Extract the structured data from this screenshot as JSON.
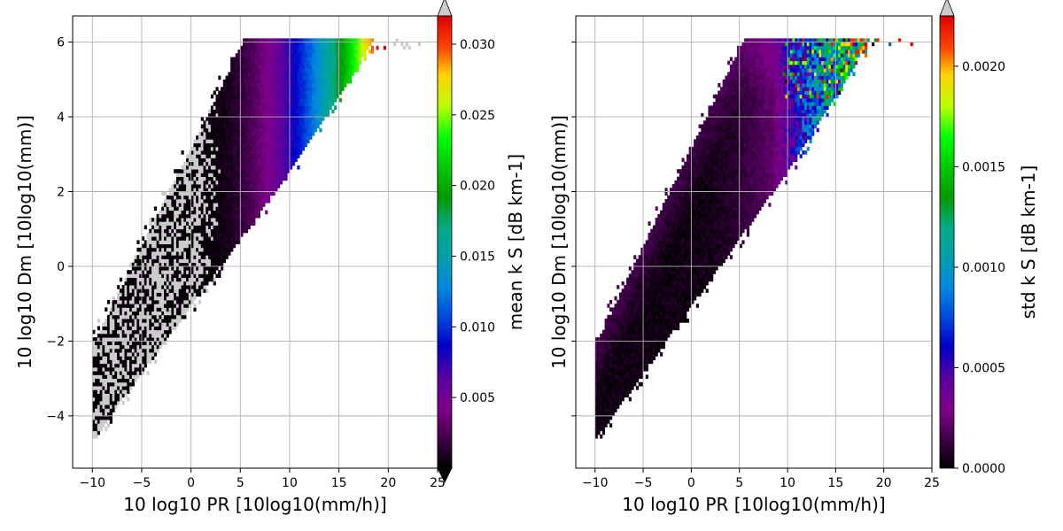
{
  "chart_data": [
    {
      "type": "heatmap",
      "xlabel": "10 log10 PR [10log10(mm/h)]",
      "ylabel": "10 log10 Dm [10log10(mm)]",
      "xlim": [
        -12,
        25
      ],
      "ylim": [
        -5.4,
        6.7
      ],
      "xticks": [
        -10,
        -5,
        0,
        5,
        10,
        15,
        20,
        25
      ],
      "yticks": [
        -4,
        -2,
        0,
        2,
        4,
        6
      ],
      "xtick_labels": [
        "−10",
        "−5",
        "0",
        "5",
        "10",
        "15",
        "20",
        "25"
      ],
      "ytick_labels": [
        "−4",
        "−2",
        "0",
        "2",
        "4",
        "6"
      ],
      "grid": true,
      "colorbar": {
        "label": "mean k S [dB km-1]",
        "range": [
          0,
          0.032
        ],
        "ticks": [
          0.005,
          0.01,
          0.015,
          0.02,
          0.025,
          0.03
        ],
        "tick_labels": [
          "0.005",
          "0.010",
          "0.015",
          "0.020",
          "0.025",
          "0.030"
        ],
        "extend": "both",
        "colormap": "nipy_spectral"
      },
      "show_ytick_labels": true
    },
    {
      "type": "heatmap",
      "xlabel": "10 log10 PR [10log10(mm/h)]",
      "ylabel": "10 log10 Dm [10log10(mm)]",
      "xlim": [
        -12,
        25
      ],
      "ylim": [
        -5.4,
        6.7
      ],
      "xticks": [
        -10,
        -5,
        0,
        5,
        10,
        15,
        20,
        25
      ],
      "yticks": [
        -4,
        -2,
        0,
        2,
        4,
        6
      ],
      "xtick_labels": [
        "−10",
        "−5",
        "0",
        "5",
        "10",
        "15",
        "20",
        "25"
      ],
      "ytick_labels": [],
      "grid": true,
      "colorbar": {
        "label": "std k S [dB km-1]",
        "range": [
          0,
          0.00225
        ],
        "ticks": [
          0,
          0.0005,
          0.001,
          0.0015,
          0.002
        ],
        "tick_labels": [
          "0.0000",
          "0.0005",
          "0.0010",
          "0.0015",
          "0.0020"
        ],
        "extend": "max",
        "colormap": "nipy_spectral"
      },
      "show_ytick_labels": false
    }
  ]
}
